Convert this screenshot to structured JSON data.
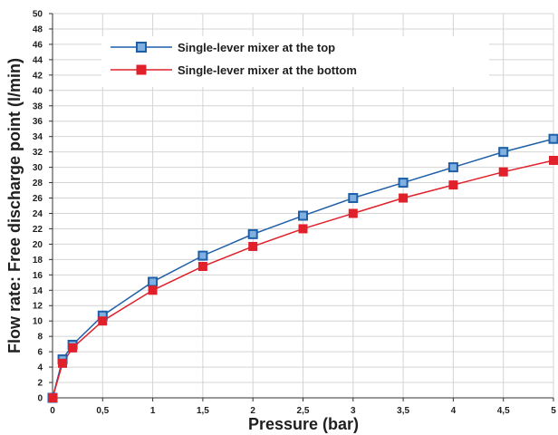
{
  "chart_data": {
    "type": "line",
    "xlabel": "Pressure (bar)",
    "ylabel": "Flow rate: Free discharge point (l/min)",
    "xlim": [
      0,
      5
    ],
    "ylim": [
      0,
      50
    ],
    "x_ticks": [
      "0",
      "0,5",
      "1",
      "1,5",
      "2",
      "2,5",
      "3",
      "3,5",
      "4",
      "4,5",
      "5"
    ],
    "y_ticks": [
      "0",
      "2",
      "4",
      "6",
      "8",
      "10",
      "12",
      "14",
      "16",
      "18",
      "20",
      "22",
      "24",
      "26",
      "28",
      "30",
      "32",
      "34",
      "36",
      "38",
      "40",
      "42",
      "44",
      "46",
      "48",
      "50"
    ],
    "grid": true,
    "legend_position": "top-left",
    "x": [
      0,
      0.1,
      0.2,
      0.5,
      1,
      1.5,
      2,
      2.5,
      3,
      3.5,
      4,
      4.5,
      5
    ],
    "series": [
      {
        "name": "Single-lever mixer at the top",
        "color": "#1f5fa8",
        "fill": "#7fb0e0",
        "values": [
          0,
          5,
          6.9,
          10.7,
          15.1,
          18.5,
          21.3,
          23.7,
          26,
          28,
          30,
          32,
          33.7
        ]
      },
      {
        "name": "Single-lever mixer at the bottom",
        "color": "#e0202a",
        "fill": "#e0202a",
        "values": [
          0,
          4.5,
          6.5,
          10,
          14,
          17.1,
          19.7,
          22,
          24,
          26,
          27.7,
          29.4,
          30.9
        ]
      }
    ]
  }
}
